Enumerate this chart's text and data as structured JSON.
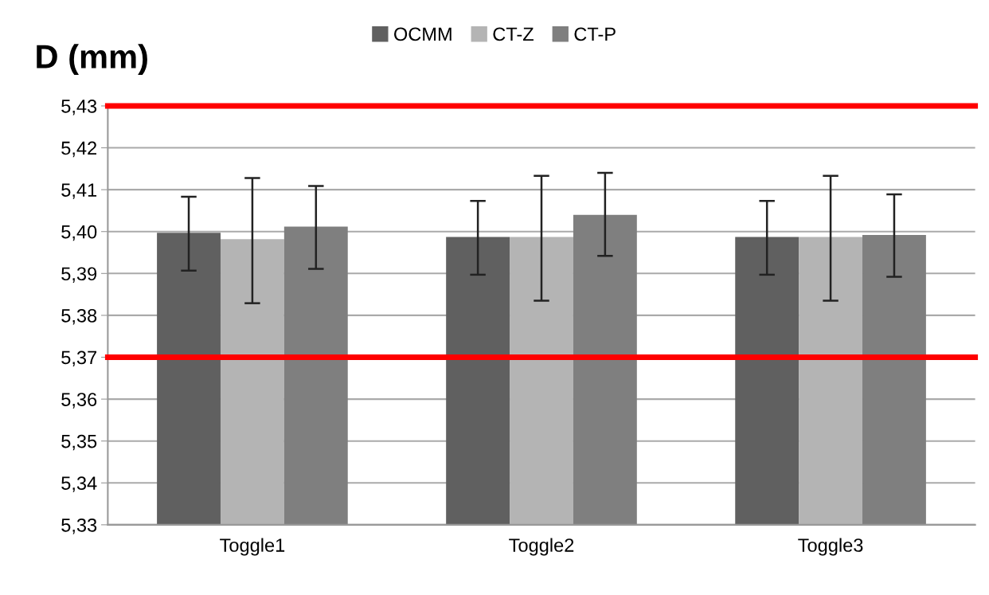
{
  "chart_data": {
    "type": "bar",
    "title": "D (mm)",
    "categories": [
      "Toggle1",
      "Toggle2",
      "Toggle3"
    ],
    "series": [
      {
        "name": "OCMM",
        "color": "#606060",
        "values": [
          5.3997,
          5.3987,
          5.3987
        ],
        "errors": [
          [
            5.3907,
            5.4083
          ],
          [
            5.3897,
            5.4073
          ],
          [
            5.3897,
            5.4073
          ]
        ]
      },
      {
        "name": "CT-Z",
        "color": "#b4b4b4",
        "values": [
          5.3982,
          5.3987,
          5.3987
        ],
        "errors": [
          [
            5.3829,
            5.4128
          ],
          [
            5.3835,
            5.4133
          ],
          [
            5.3835,
            5.4133
          ]
        ]
      },
      {
        "name": "CT-P",
        "color": "#7f7f7f",
        "values": [
          5.4012,
          5.404,
          5.3992
        ],
        "errors": [
          [
            5.3911,
            5.4109
          ],
          [
            5.3942,
            5.414
          ],
          [
            5.3892,
            5.4089
          ]
        ]
      }
    ],
    "ylim": [
      5.33,
      5.43
    ],
    "yticks": [
      {
        "value": 5.33,
        "label": "5,33"
      },
      {
        "value": 5.34,
        "label": "5,34"
      },
      {
        "value": 5.35,
        "label": "5,35"
      },
      {
        "value": 5.36,
        "label": "5,36"
      },
      {
        "value": 5.37,
        "label": "5,37"
      },
      {
        "value": 5.38,
        "label": "5,38"
      },
      {
        "value": 5.39,
        "label": "5,39"
      },
      {
        "value": 5.4,
        "label": "5,40"
      },
      {
        "value": 5.41,
        "label": "5,41"
      },
      {
        "value": 5.42,
        "label": "5,42"
      },
      {
        "value": 5.43,
        "label": "5,43"
      }
    ],
    "ref_lines": [
      {
        "axis": "y",
        "value": 5.43,
        "color": "#ff0000"
      },
      {
        "axis": "y",
        "value": 5.37,
        "color": "#ff0000"
      }
    ],
    "grid": "y",
    "legend": "top"
  }
}
